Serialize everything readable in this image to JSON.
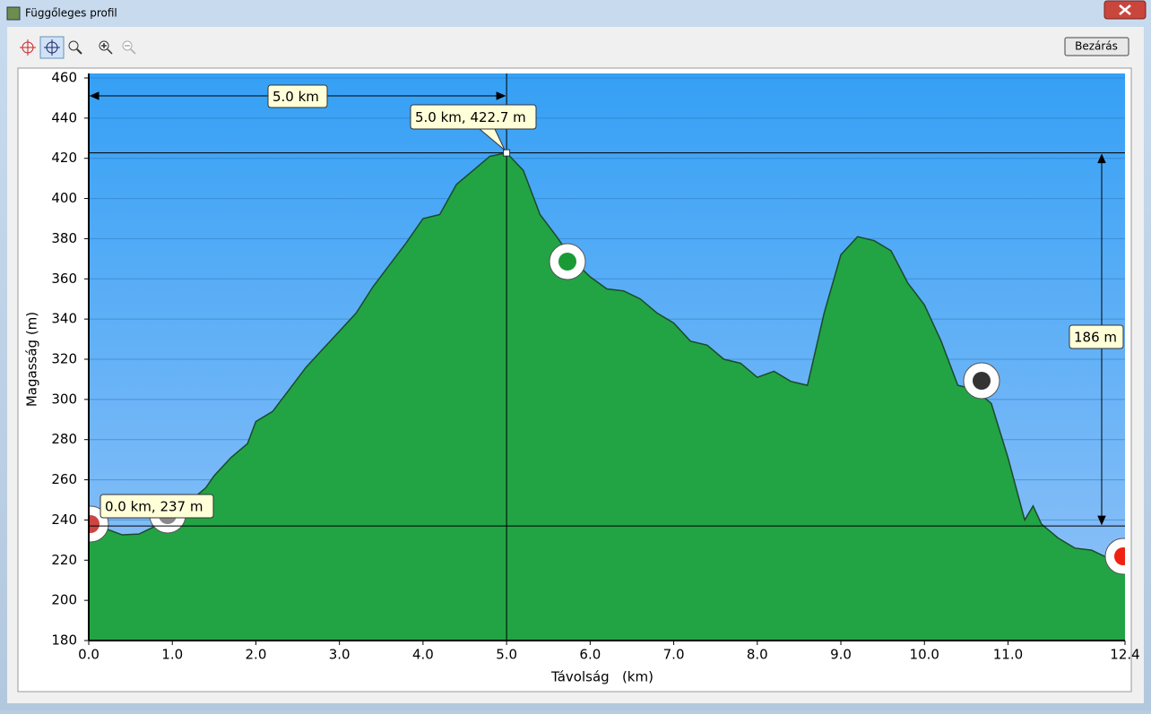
{
  "window": {
    "title": "Függőleges profil",
    "close_button": "Bezárás"
  },
  "chart_data": {
    "type": "area",
    "xlabel": "Távolság   (km)",
    "ylabel": "Magasság (m)",
    "x": [
      0.0,
      0.2,
      0.4,
      0.6,
      0.8,
      1.0,
      1.2,
      1.4,
      1.5,
      1.7,
      1.9,
      2.0,
      2.2,
      2.4,
      2.6,
      2.8,
      3.0,
      3.2,
      3.4,
      3.6,
      3.8,
      4.0,
      4.2,
      4.4,
      4.6,
      4.8,
      5.0,
      5.2,
      5.4,
      5.6,
      5.8,
      6.0,
      6.2,
      6.4,
      6.6,
      6.8,
      7.0,
      7.2,
      7.4,
      7.6,
      7.8,
      8.0,
      8.2,
      8.4,
      8.6,
      8.8,
      9.0,
      9.2,
      9.4,
      9.6,
      9.8,
      10.0,
      10.2,
      10.4,
      10.6,
      10.8,
      11.0,
      11.2,
      11.3,
      11.4,
      11.6,
      11.8,
      12.0,
      12.2,
      12.4
    ],
    "values": [
      237,
      235.7,
      232.6,
      233,
      237,
      242,
      249,
      256,
      262,
      271,
      278,
      289,
      294,
      305,
      316,
      325,
      334,
      343,
      356,
      367,
      378,
      390,
      392,
      407,
      414,
      421,
      422.7,
      414,
      392,
      381,
      369,
      361,
      355,
      354,
      350,
      343,
      338,
      329,
      327,
      320,
      318,
      311,
      314,
      309,
      307,
      343,
      372,
      381,
      379,
      374,
      358,
      347,
      329,
      307,
      305,
      298,
      271,
      240,
      247,
      238,
      231,
      226,
      225,
      221,
      220
    ],
    "color": "#1f9a3e",
    "xlim": [
      0,
      12.4
    ],
    "ylim": [
      180,
      460
    ],
    "xticks": [
      {
        "value": 0,
        "label": "0.0"
      },
      {
        "value": 1,
        "label": "1.0"
      },
      {
        "value": 2,
        "label": "2.0"
      },
      {
        "value": 3,
        "label": "3.0"
      },
      {
        "value": 4,
        "label": "4.0"
      },
      {
        "value": 5,
        "label": "5.0"
      },
      {
        "value": 6,
        "label": "6.0"
      },
      {
        "value": 7,
        "label": "7.0"
      },
      {
        "value": 8,
        "label": "8.0"
      },
      {
        "value": 9,
        "label": "9.0"
      },
      {
        "value": 10,
        "label": "10.0"
      },
      {
        "value": 11,
        "label": "11.0"
      },
      12.4
    ],
    "yticks": [
      180,
      200,
      220,
      240,
      260,
      280,
      300,
      320,
      340,
      360,
      380,
      400,
      420,
      440,
      460
    ],
    "grid": true,
    "annotations": {
      "distance": "5.0 km",
      "cursor": "5.0 km, 422.7 m",
      "start": "0.0 km, 237 m",
      "height_difference": "186 m"
    }
  }
}
